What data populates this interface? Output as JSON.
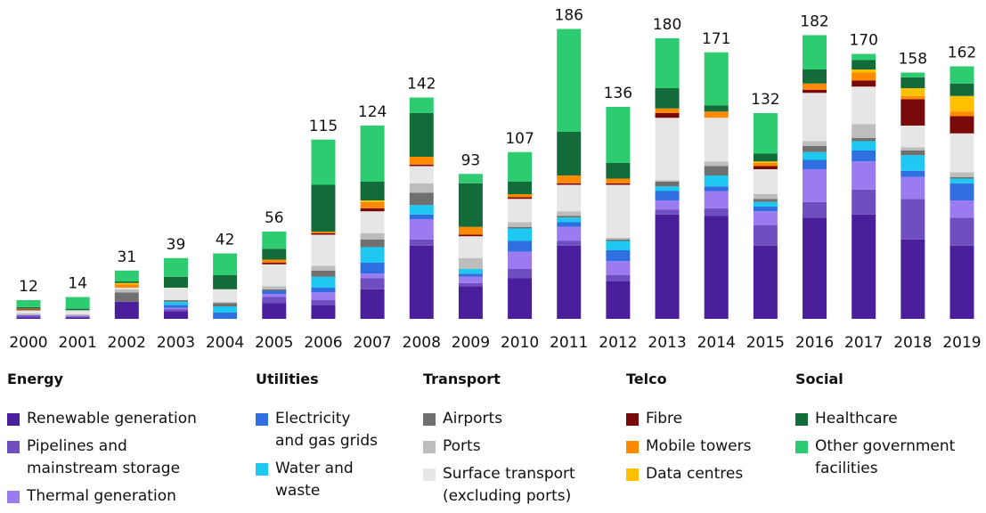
{
  "chart_data": {
    "type": "stacked-bar",
    "categories": [
      "2000",
      "2001",
      "2002",
      "2003",
      "2004",
      "2005",
      "2006",
      "2007",
      "2008",
      "2009",
      "2010",
      "2011",
      "2012",
      "2013",
      "2014",
      "2015",
      "2016",
      "2017",
      "2018",
      "2019"
    ],
    "totals": [
      12,
      14,
      31,
      39,
      42,
      56,
      115,
      124,
      142,
      93,
      107,
      186,
      136,
      180,
      171,
      132,
      182,
      170,
      158,
      162
    ],
    "legend_groups": [
      "Energy",
      "Utilities",
      "Transport",
      "Telco",
      "Social"
    ],
    "series": [
      {
        "name": "Renewable generation",
        "group": 0,
        "color": "#4b1f9c",
        "values": [
          1,
          1,
          11,
          5,
          0,
          10,
          9,
          19,
          47,
          21,
          26,
          47,
          24,
          67,
          66,
          47,
          65,
          67,
          51,
          47
        ]
      },
      {
        "name": "Pipelines and mainstream storage",
        "group": 0,
        "color": "#6f4fc0",
        "values": [
          1,
          0.5,
          0,
          1,
          0,
          4,
          3,
          7,
          4,
          2,
          6,
          3,
          4,
          3,
          5,
          13,
          10,
          16,
          26,
          18
        ]
      },
      {
        "name": "Thermal generation",
        "group": 0,
        "color": "#9b7cf0",
        "values": [
          0.5,
          0.5,
          0,
          1,
          0,
          2,
          5,
          3,
          13,
          4,
          11,
          9,
          9,
          6,
          11,
          9,
          21,
          18,
          14,
          11
        ]
      },
      {
        "name": "Electricity and gas grids",
        "group": 1,
        "color": "#2f6fe0",
        "values": [
          0,
          0,
          0,
          2,
          4,
          2,
          3,
          7,
          3,
          2,
          7,
          3,
          7,
          6,
          3,
          3,
          6,
          7,
          4,
          11
        ]
      },
      {
        "name": "Water and waste",
        "group": 1,
        "color": "#1ec8f0",
        "values": [
          0,
          0,
          0,
          2,
          4,
          0,
          7,
          10,
          6,
          3,
          8,
          3,
          6,
          3,
          7,
          3,
          5,
          6,
          10,
          3
        ]
      },
      {
        "name": "Airports",
        "group": 2,
        "color": "#707070",
        "values": [
          0,
          0,
          6,
          1,
          2,
          1,
          4,
          5,
          8,
          0,
          1,
          1,
          1,
          3,
          6,
          2,
          4,
          2,
          3,
          1
        ]
      },
      {
        "name": "Ports",
        "group": 2,
        "color": "#bdbdbd",
        "values": [
          1,
          1,
          2,
          0,
          1,
          2,
          3,
          4,
          6,
          7,
          3,
          3,
          1,
          1,
          3,
          3,
          3,
          9,
          2,
          3
        ]
      },
      {
        "name": "Surface transport (excluding ports)",
        "group": 2,
        "color": "#e6e6e6",
        "values": [
          2,
          2.5,
          1,
          8,
          8,
          14,
          20,
          14,
          11,
          14,
          15,
          17,
          34,
          40,
          28,
          16,
          31,
          24,
          14,
          25
        ]
      },
      {
        "name": "Fibre",
        "group": 3,
        "color": "#7a0a0a",
        "values": [
          0.5,
          0,
          0,
          0,
          0,
          1,
          1,
          2,
          1,
          1,
          1,
          1,
          1,
          3,
          0,
          2,
          2,
          4,
          17,
          11
        ]
      },
      {
        "name": "Mobile towers",
        "group": 3,
        "color": "#ff8a00",
        "values": [
          0.5,
          0,
          2,
          0,
          0,
          2,
          1,
          4,
          5,
          5,
          2,
          5,
          3,
          3,
          4,
          2,
          4,
          5,
          2,
          3
        ]
      },
      {
        "name": "Data centres",
        "group": 3,
        "color": "#ffc000",
        "values": [
          0,
          0,
          1,
          0,
          0,
          0,
          0,
          1,
          0,
          0,
          0,
          0,
          0,
          0,
          0,
          1,
          0,
          2,
          5,
          10
        ]
      },
      {
        "name": "Healthcare",
        "group": 4,
        "color": "#146b3a",
        "values": [
          1,
          1,
          1,
          7,
          9,
          7,
          30,
          12,
          28,
          28,
          8,
          28,
          10,
          13,
          4,
          5,
          9,
          6,
          7,
          8
        ]
      },
      {
        "name": "Other government facilities",
        "group": 4,
        "color": "#2ecc71",
        "values": [
          4.5,
          7.5,
          7,
          12,
          14,
          11,
          29,
          36,
          10,
          6,
          19,
          66,
          36,
          32,
          34,
          26,
          22,
          4,
          3,
          11
        ]
      }
    ]
  }
}
